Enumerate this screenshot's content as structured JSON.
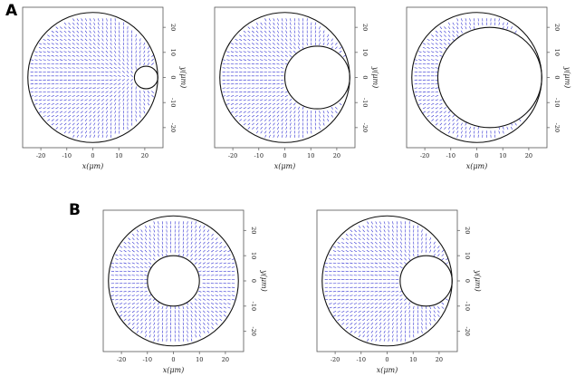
{
  "panel_labels": {
    "a": "A",
    "b": "B"
  },
  "colors": {
    "director": "#1f1fcf",
    "boundary": "#111111",
    "frame": "#555555"
  },
  "chart_data": [
    {
      "type": "vector-field",
      "panel": "A",
      "outer_circle": {
        "cx": 0,
        "cy": 0,
        "r": 25
      },
      "inner_circle": {
        "cx": 20.5,
        "cy": 0,
        "r": 4.5
      },
      "xlabel": "x(μm)",
      "ylabel": "y(μm)",
      "xlim": [
        -27,
        27
      ],
      "ylim": [
        -28,
        28
      ],
      "xticks": [
        -20,
        -10,
        0,
        10,
        20
      ],
      "yticks": [
        20,
        10,
        0,
        -10,
        -20
      ]
    },
    {
      "type": "vector-field",
      "panel": "A",
      "outer_circle": {
        "cx": 0,
        "cy": 0,
        "r": 25
      },
      "inner_circle": {
        "cx": 12.5,
        "cy": 0,
        "r": 12.5
      },
      "xlabel": "x(μm)",
      "ylabel": "y(μm)",
      "xlim": [
        -27,
        27
      ],
      "ylim": [
        -28,
        28
      ],
      "xticks": [
        -20,
        -10,
        0,
        10,
        20
      ],
      "yticks": [
        20,
        10,
        0,
        -10,
        -20
      ]
    },
    {
      "type": "vector-field",
      "panel": "A",
      "outer_circle": {
        "cx": 0,
        "cy": 0,
        "r": 25
      },
      "inner_circle": {
        "cx": 5,
        "cy": 0,
        "r": 20
      },
      "xlabel": "x(μm)",
      "ylabel": "y(μm)",
      "xlim": [
        -27,
        27
      ],
      "ylim": [
        -28,
        28
      ],
      "xticks": [
        -20,
        -10,
        0,
        10,
        20
      ],
      "yticks": [
        20,
        10,
        0,
        -10,
        -20
      ]
    },
    {
      "type": "vector-field",
      "panel": "B",
      "outer_circle": {
        "cx": 0,
        "cy": 0,
        "r": 25
      },
      "inner_circle": {
        "cx": 0,
        "cy": 0,
        "r": 10
      },
      "xlabel": "x(μm)",
      "ylabel": "y(μm)",
      "xlim": [
        -27,
        27
      ],
      "ylim": [
        -28,
        28
      ],
      "xticks": [
        -20,
        -10,
        0,
        10,
        20
      ],
      "yticks": [
        20,
        10,
        0,
        -10,
        -20
      ]
    },
    {
      "type": "vector-field",
      "panel": "B",
      "outer_circle": {
        "cx": 0,
        "cy": 0,
        "r": 25
      },
      "inner_circle": {
        "cx": 15,
        "cy": 0,
        "r": 10
      },
      "xlabel": "x(μm)",
      "ylabel": "y(μm)",
      "xlim": [
        -27,
        27
      ],
      "ylim": [
        -28,
        28
      ],
      "xticks": [
        -20,
        -10,
        0,
        10,
        20
      ],
      "yticks": [
        20,
        10,
        0,
        -10,
        -20
      ]
    }
  ]
}
